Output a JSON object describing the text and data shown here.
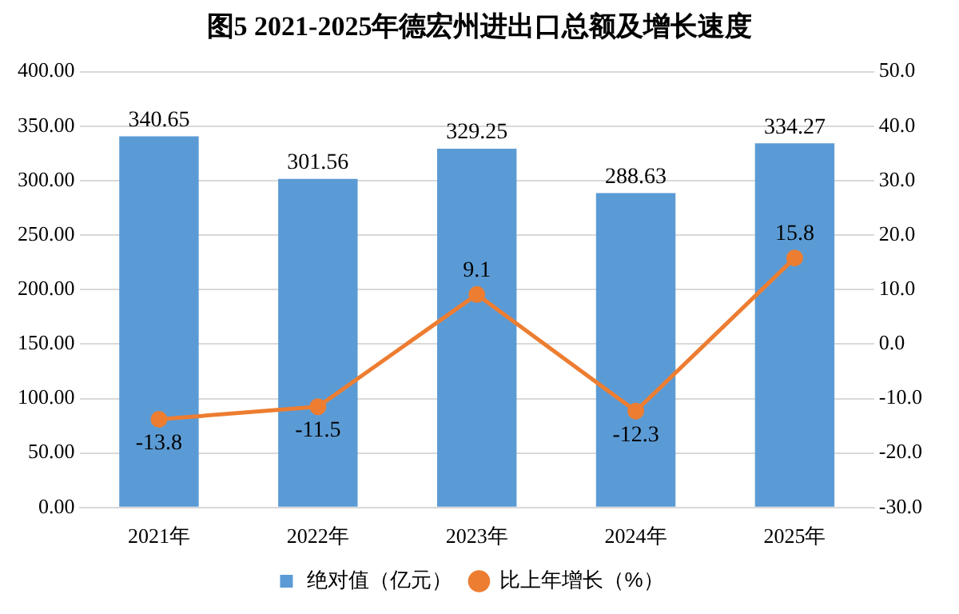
{
  "chart_data": {
    "type": "bar",
    "title": "图5  2021-2025年德宏州进出口总额及增长速度",
    "categories": [
      "2021年",
      "2022年",
      "2023年",
      "2024年",
      "2025年"
    ],
    "series": [
      {
        "name": "绝对值（亿元）",
        "color": "#5b9bd5",
        "values": [
          340.65,
          301.56,
          329.25,
          288.63,
          334.27
        ]
      },
      {
        "name": "比上年增长（%）",
        "type": "line",
        "axis": "y2",
        "color": "#ed7d31",
        "values": [
          -13.8,
          -11.5,
          9.1,
          -12.3,
          15.8
        ]
      }
    ],
    "ylim": [
      0,
      400
    ],
    "yticks": [
      {
        "value": 0,
        "label": "0.00"
      },
      {
        "value": 50,
        "label": "50.00"
      },
      {
        "value": 100,
        "label": "100.00"
      },
      {
        "value": 150,
        "label": "150.00"
      },
      {
        "value": 200,
        "label": "200.00"
      },
      {
        "value": 250,
        "label": "250.00"
      },
      {
        "value": 300,
        "label": "300.00"
      },
      {
        "value": 350,
        "label": "350.00"
      },
      {
        "value": 400,
        "label": "400.00"
      }
    ],
    "y2lim": [
      -30,
      50
    ],
    "y2ticks": [
      {
        "value": -30,
        "label": "-30.0"
      },
      {
        "value": -20,
        "label": "-20.0"
      },
      {
        "value": -10,
        "label": "-10.0"
      },
      {
        "value": 0,
        "label": "0.0"
      },
      {
        "value": 10,
        "label": "10.0"
      },
      {
        "value": 20,
        "label": "20.0"
      },
      {
        "value": 30,
        "label": "30.0"
      },
      {
        "value": 40,
        "label": "40.0"
      },
      {
        "value": 50,
        "label": "50.0"
      }
    ],
    "grid": "y",
    "legend": "bottom",
    "marker": "circle",
    "line_style": "solid",
    "data_labels": true
  }
}
